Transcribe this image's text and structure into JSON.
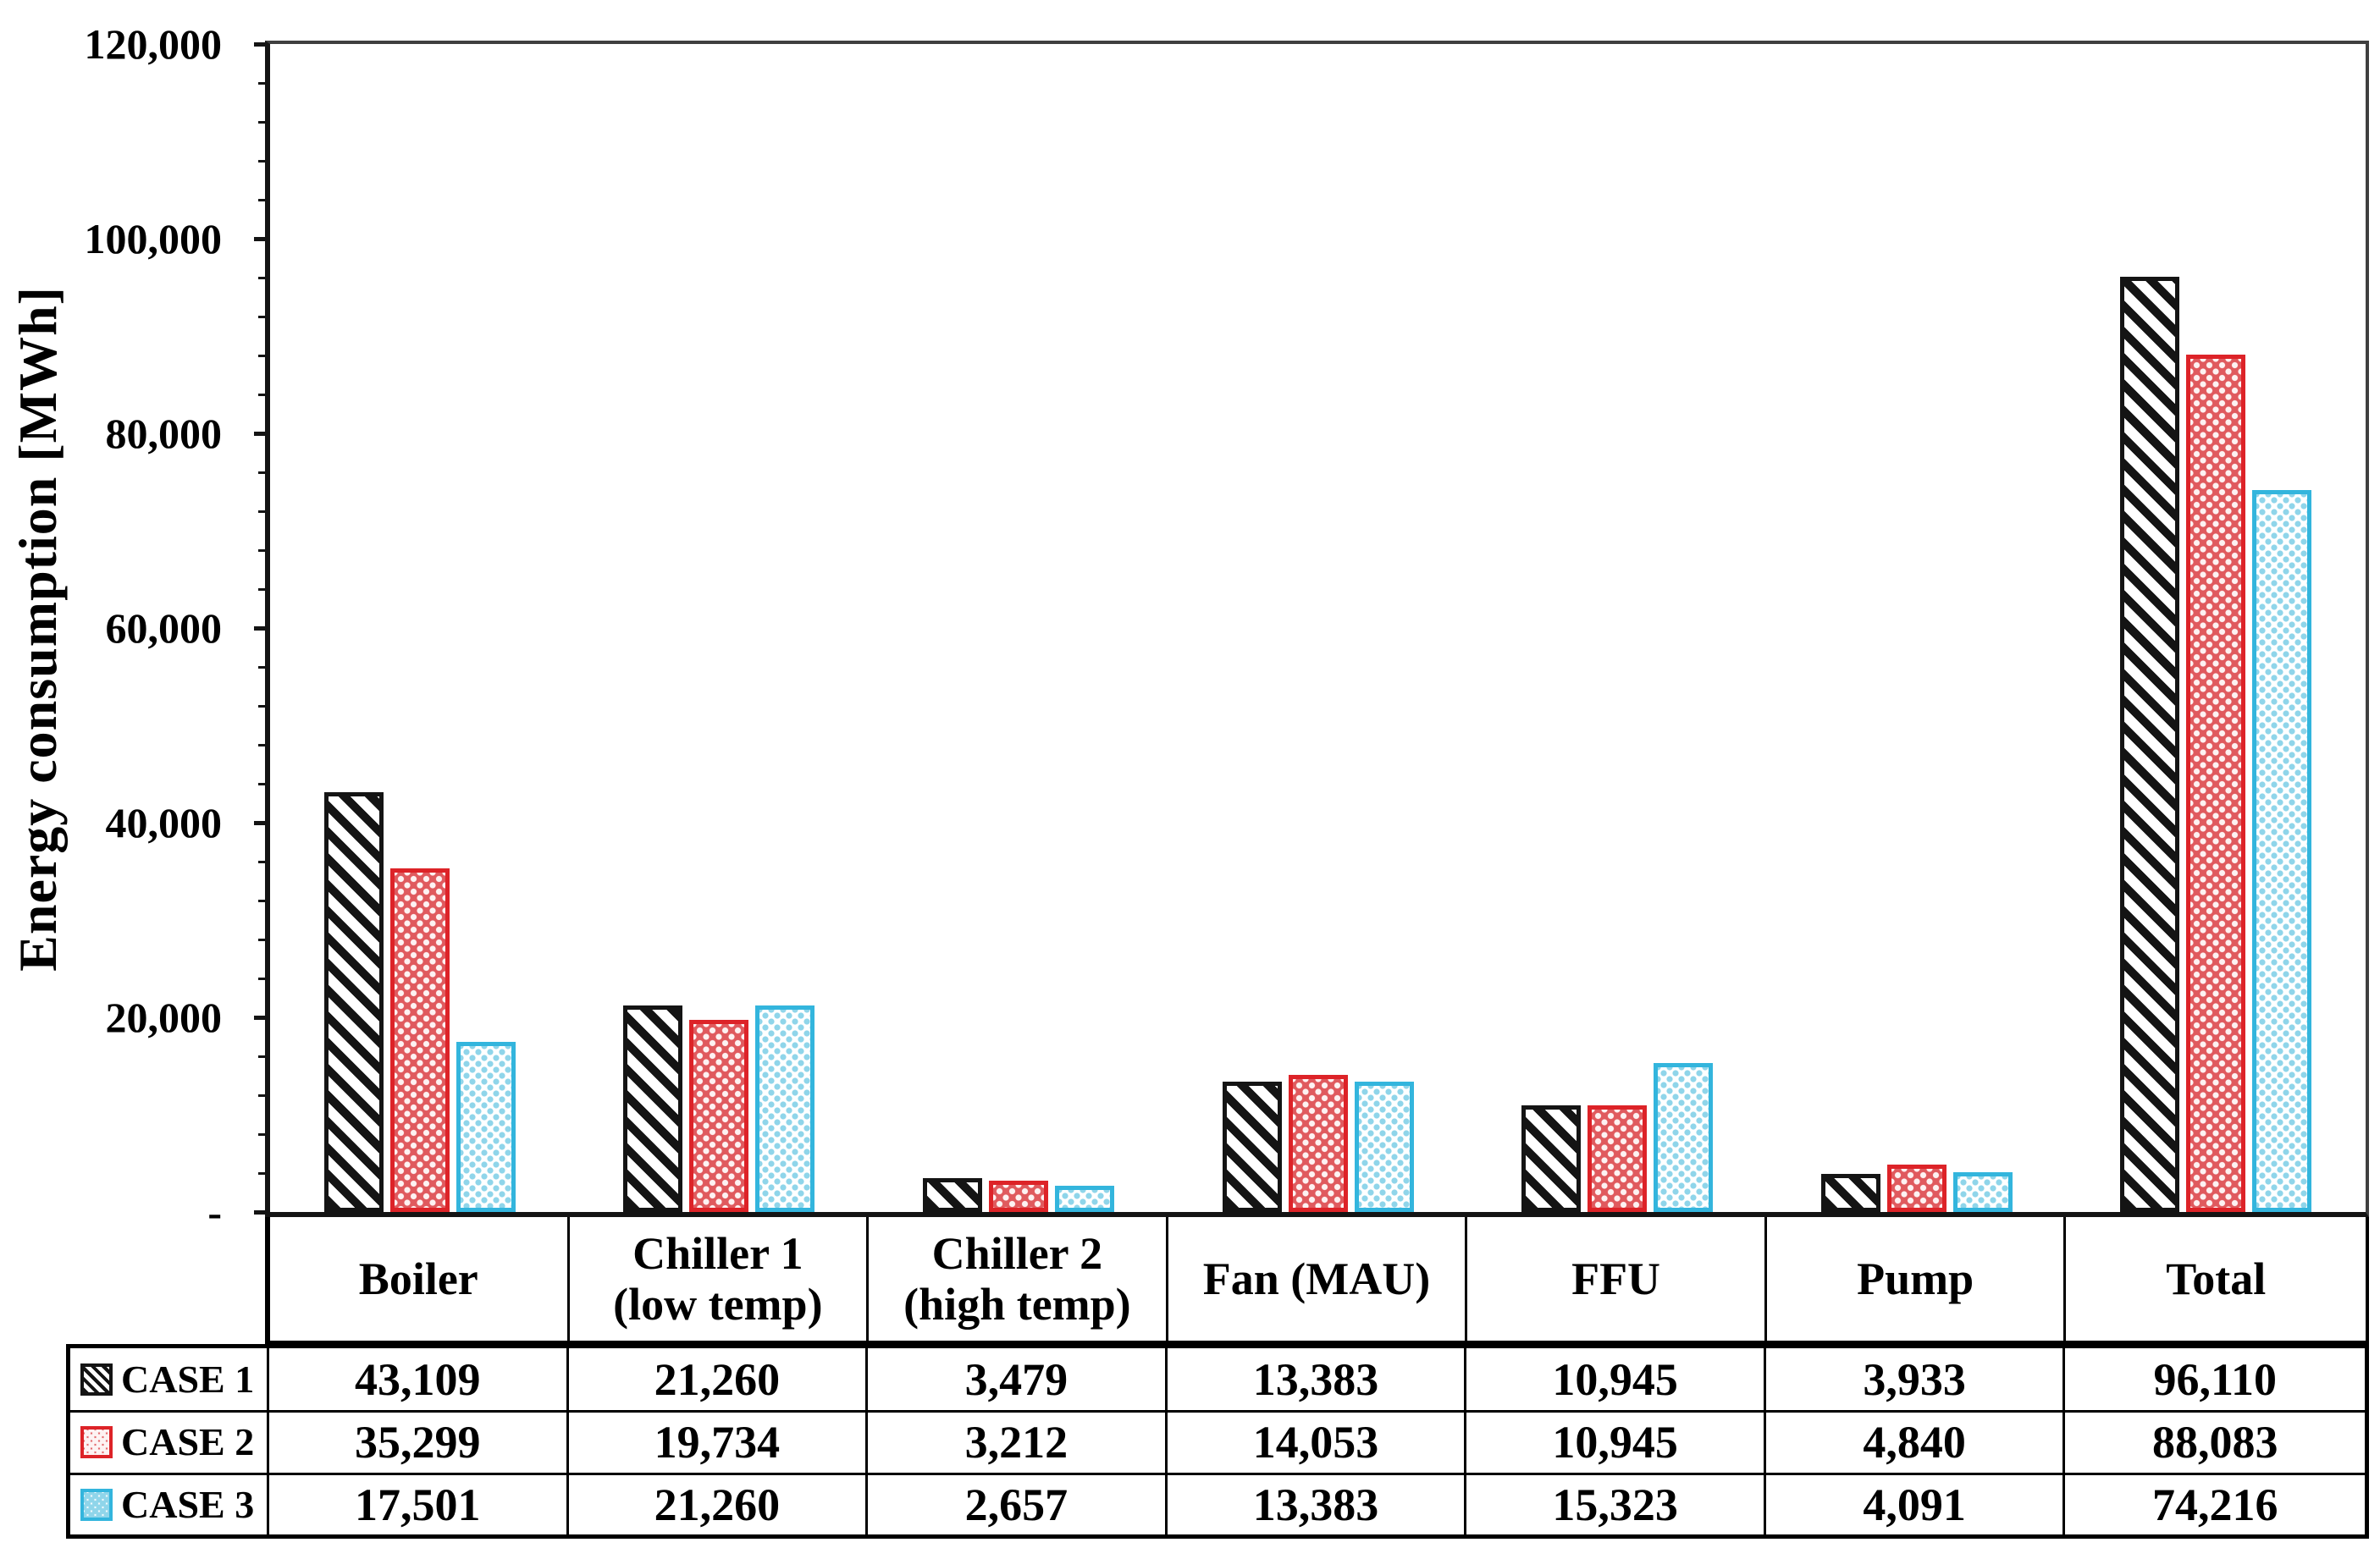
{
  "figure": {
    "kind": "grouped bar chart with data table legend",
    "title": ""
  },
  "chart_data": {
    "type": "bar",
    "title": "",
    "xlabel": "",
    "ylabel": "Energy consumption [MWh]",
    "ylim": [
      0,
      120000
    ],
    "ytick_step": 20000,
    "minor_tick_step": 4000,
    "grid": false,
    "legend_position": "table rows below chart, left column",
    "categories": [
      "Boiler",
      "Chiller 1 (low temp)",
      "Chiller 2 (high temp)",
      "Fan (MAU)",
      "FFU",
      "Pump",
      "Total"
    ],
    "series": [
      {
        "name": "CASE 1",
        "pattern": "black-diagonal-hatch",
        "values": [
          43109,
          21260,
          3479,
          13383,
          10945,
          3933,
          96110
        ]
      },
      {
        "name": "CASE 2",
        "pattern": "red-dotted-diamond",
        "values": [
          35299,
          19734,
          3212,
          14053,
          10945,
          4840,
          88083
        ]
      },
      {
        "name": "CASE 3",
        "pattern": "cyan-dotted-diamond",
        "values": [
          17501,
          21260,
          2657,
          13383,
          15323,
          4091,
          74216
        ]
      }
    ],
    "yticks": [
      {
        "v": 0,
        "label": "-"
      },
      {
        "v": 20000,
        "label": "20,000"
      },
      {
        "v": 40000,
        "label": "40,000"
      },
      {
        "v": 60000,
        "label": "60,000"
      },
      {
        "v": 80000,
        "label": "80,000"
      },
      {
        "v": 100000,
        "label": "100,000"
      },
      {
        "v": 120000,
        "label": "120,000"
      }
    ]
  },
  "table": {
    "column_headers": [
      [
        "Boiler"
      ],
      [
        "Chiller 1",
        "(low temp)"
      ],
      [
        "Chiller 2",
        "(high temp)"
      ],
      [
        "Fan (MAU)"
      ],
      [
        "FFU"
      ],
      [
        "Pump"
      ],
      [
        "Total"
      ]
    ],
    "rows": [
      {
        "label": "CASE 1",
        "case": "case1",
        "values": [
          "43,109",
          "21,260",
          "3,479",
          "13,383",
          "10,945",
          "3,933",
          "96,110"
        ]
      },
      {
        "label": "CASE 2",
        "case": "case2",
        "values": [
          "35,299",
          "19,734",
          "3,212",
          "14,053",
          "10,945",
          "4,840",
          "88,083"
        ]
      },
      {
        "label": "CASE 3",
        "case": "case3",
        "values": [
          "17,501",
          "21,260",
          "2,657",
          "13,383",
          "15,323",
          "4,091",
          "74,216"
        ]
      }
    ]
  },
  "colors": {
    "ink": "#141414",
    "case2_fill": "#e05a5e",
    "case2_border": "#dd2328",
    "case3_dot": "#8fd5ea",
    "case3_border": "#33b5dd",
    "frame": "#3f3f3f",
    "table_border": "#000000"
  }
}
